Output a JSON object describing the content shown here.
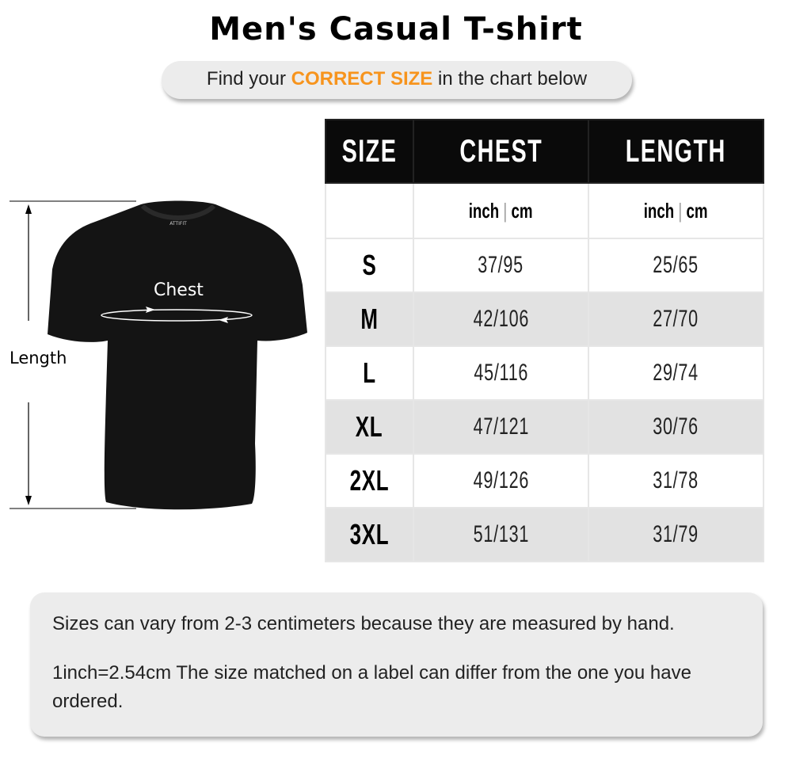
{
  "title": "Men's Casual T-shirt",
  "subtitle": {
    "prefix": "Find your ",
    "highlight": "CORRECT SIZE",
    "suffix": " in the chart below",
    "highlight_color": "#f7941d"
  },
  "figure": {
    "chest_label": "Chest",
    "length_label": "Length",
    "brand_logo": "ATTIFIT"
  },
  "table": {
    "headers": [
      "SIZE",
      "CHEST",
      "LENGTH"
    ],
    "units": {
      "inch": "inch",
      "sep": "|",
      "cm": "cm"
    },
    "rows": [
      {
        "size": "S",
        "chest": "37/95",
        "length": "25/65"
      },
      {
        "size": "M",
        "chest": "42/106",
        "length": "27/70"
      },
      {
        "size": "L",
        "chest": "45/116",
        "length": "29/74"
      },
      {
        "size": "XL",
        "chest": "47/121",
        "length": "30/76"
      },
      {
        "size": "2XL",
        "chest": "49/126",
        "length": "31/78"
      },
      {
        "size": "3XL",
        "chest": "51/131",
        "length": "31/79"
      }
    ]
  },
  "notes": [
    "Sizes can vary from 2-3 centimeters because they are measured by hand.",
    "1inch=2.54cm The size matched on a label can differ from the one you have ordered."
  ]
}
